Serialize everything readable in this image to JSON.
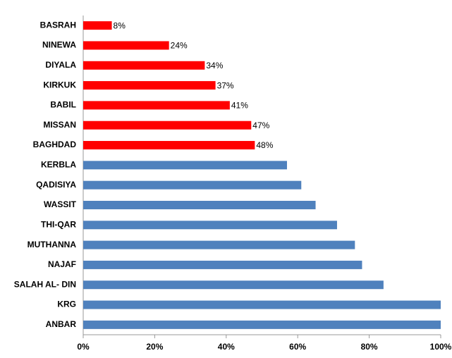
{
  "chart_data": {
    "type": "bar",
    "orientation": "horizontal",
    "categories": [
      "BASRAH",
      "NINEWA",
      "DIYALA",
      "KIRKUK",
      "BABIL",
      "MISSAN",
      "BAGHDAD",
      "KERBLA",
      "QADISIYA",
      "WASSIT",
      "THI-QAR",
      "MUTHANNA",
      "NAJAF",
      "SALAH AL- DIN",
      "KRG",
      "ANBAR"
    ],
    "values": [
      8,
      24,
      34,
      37,
      41,
      47,
      48,
      57,
      61,
      65,
      71,
      76,
      78,
      84,
      100,
      100
    ],
    "value_labels": [
      "8%",
      "24%",
      "34%",
      "37%",
      "41%",
      "47%",
      "48%",
      null,
      null,
      null,
      null,
      null,
      null,
      null,
      null,
      null
    ],
    "colors": [
      "#ff0000",
      "#ff0000",
      "#ff0000",
      "#ff0000",
      "#ff0000",
      "#ff0000",
      "#ff0000",
      "#4f81bd",
      "#4f81bd",
      "#4f81bd",
      "#4f81bd",
      "#4f81bd",
      "#4f81bd",
      "#4f81bd",
      "#4f81bd",
      "#4f81bd"
    ],
    "xlim": [
      0,
      100
    ],
    "xticks": [
      {
        "value": 0,
        "label": "0%"
      },
      {
        "value": 20,
        "label": "20%"
      },
      {
        "value": 40,
        "label": "40%"
      },
      {
        "value": 60,
        "label": "60%"
      },
      {
        "value": 80,
        "label": "80%"
      },
      {
        "value": 100,
        "label": "100%"
      }
    ],
    "grid": false
  }
}
